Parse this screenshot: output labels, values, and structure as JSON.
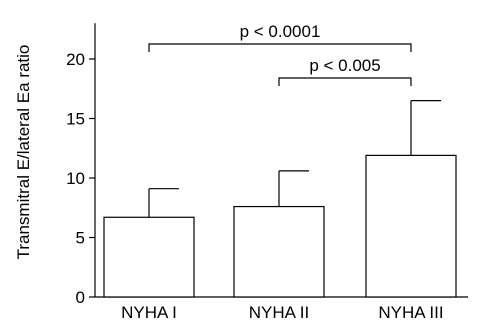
{
  "chart_data": {
    "type": "bar",
    "categories": [
      "NYHA I",
      "NYHA II",
      "NYHA III"
    ],
    "values": [
      6.7,
      7.6,
      11.9
    ],
    "errors": [
      2.4,
      3.0,
      4.6
    ],
    "ylabel": "Transmitral E/lateral Ea ratio",
    "xlabel": "",
    "title": "",
    "ylim": [
      0,
      23
    ],
    "yticks": [
      0,
      5,
      10,
      15,
      20
    ],
    "grid": false,
    "significance": [
      {
        "from": 0,
        "to": 2,
        "label": "p < 0.0001"
      },
      {
        "from": 1,
        "to": 2,
        "label": "p < 0.005"
      }
    ]
  }
}
